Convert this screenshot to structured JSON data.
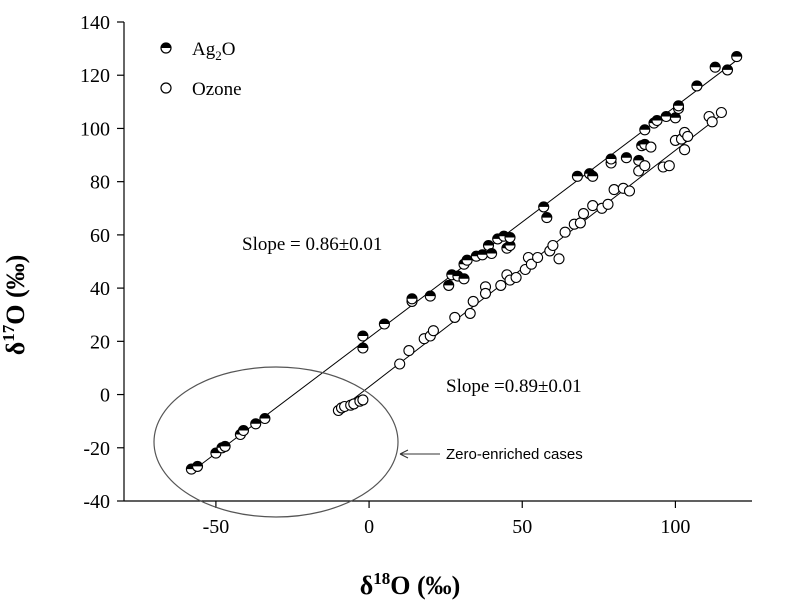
{
  "chart_data": {
    "type": "scatter",
    "title": "",
    "xlabel": {
      "prefix": "δ",
      "sup": "18",
      "suffix": "O (‰)"
    },
    "ylabel": {
      "prefix": "δ",
      "sup": "17",
      "suffix": "O (‰)"
    },
    "xlim": [
      -80,
      125
    ],
    "ylim": [
      -40,
      140
    ],
    "xticks": [
      -50,
      0,
      50,
      100
    ],
    "yticks": [
      -40,
      -20,
      0,
      20,
      40,
      60,
      80,
      100,
      120,
      140
    ],
    "grid": false,
    "legend": {
      "placement": "top-left",
      "entries": [
        {
          "base": "Ag",
          "sub": "2",
          "tail": "O",
          "marker": "half-filled"
        },
        {
          "base": "Ozone",
          "sub": "",
          "tail": "",
          "marker": "open"
        }
      ]
    },
    "series": [
      {
        "name": "Ag2O",
        "marker": "half-filled",
        "points": [
          [
            -58,
            -28
          ],
          [
            -56,
            -27
          ],
          [
            -50,
            -22
          ],
          [
            -48,
            -20
          ],
          [
            -47,
            -19.5
          ],
          [
            -42,
            -15
          ],
          [
            -41,
            -13.5
          ],
          [
            -37,
            -11
          ],
          [
            -34,
            -9
          ],
          [
            -2,
            17.5
          ],
          [
            -2,
            22
          ],
          [
            5,
            26.5
          ],
          [
            14,
            35
          ],
          [
            14,
            36
          ],
          [
            20,
            37
          ],
          [
            26,
            41
          ],
          [
            27,
            45
          ],
          [
            29,
            44.5
          ],
          [
            31,
            43.5
          ],
          [
            31,
            49
          ],
          [
            32,
            50.5
          ],
          [
            35,
            52
          ],
          [
            37,
            52.5
          ],
          [
            39,
            56
          ],
          [
            40,
            53
          ],
          [
            42,
            58.5
          ],
          [
            44,
            59.5
          ],
          [
            45,
            55
          ],
          [
            46,
            56
          ],
          [
            46,
            59
          ],
          [
            57,
            70.5
          ],
          [
            58,
            66.5
          ],
          [
            68,
            82
          ],
          [
            72,
            83
          ],
          [
            73,
            82
          ],
          [
            79,
            87
          ],
          [
            79,
            88.5
          ],
          [
            84,
            89
          ],
          [
            88,
            88
          ],
          [
            89,
            93.5
          ],
          [
            90,
            94
          ],
          [
            90,
            99.5
          ],
          [
            93,
            102
          ],
          [
            94,
            103
          ],
          [
            97,
            104.5
          ],
          [
            100,
            104
          ],
          [
            101,
            107.5
          ],
          [
            101,
            108.5
          ],
          [
            107,
            116
          ],
          [
            113,
            123
          ],
          [
            117,
            122
          ],
          [
            120,
            127
          ]
        ]
      },
      {
        "name": "Ozone",
        "marker": "open",
        "points": [
          [
            -10,
            -6
          ],
          [
            -9,
            -5
          ],
          [
            -8,
            -4.5
          ],
          [
            -6,
            -4
          ],
          [
            -5,
            -3.5
          ],
          [
            -3,
            -2.5
          ],
          [
            -2,
            -2
          ],
          [
            10,
            11.5
          ],
          [
            13,
            16.5
          ],
          [
            18,
            21
          ],
          [
            20,
            22
          ],
          [
            21,
            24
          ],
          [
            28,
            29
          ],
          [
            33,
            30.5
          ],
          [
            34,
            35
          ],
          [
            38,
            40.5
          ],
          [
            38,
            38
          ],
          [
            43,
            41
          ],
          [
            45,
            45
          ],
          [
            46,
            43
          ],
          [
            48,
            44
          ],
          [
            51,
            47
          ],
          [
            52,
            51.5
          ],
          [
            53,
            49
          ],
          [
            55,
            51.5
          ],
          [
            59,
            54
          ],
          [
            60,
            56
          ],
          [
            62,
            51
          ],
          [
            64,
            61
          ],
          [
            67,
            64
          ],
          [
            69,
            64.5
          ],
          [
            70,
            68
          ],
          [
            73,
            71
          ],
          [
            76,
            70
          ],
          [
            78,
            71.5
          ],
          [
            80,
            77
          ],
          [
            83,
            77.5
          ],
          [
            85,
            76.5
          ],
          [
            88,
            84
          ],
          [
            90,
            86
          ],
          [
            92,
            93
          ],
          [
            96,
            85.5
          ],
          [
            98,
            86
          ],
          [
            100,
            95.5
          ],
          [
            102,
            96
          ],
          [
            103,
            92
          ],
          [
            103,
            98.5
          ],
          [
            104,
            97
          ],
          [
            111,
            104.5
          ],
          [
            112,
            102.5
          ],
          [
            115,
            106
          ]
        ]
      }
    ],
    "fit_lines": [
      {
        "series": "Ag2O",
        "from": [
          -58,
          -29
        ],
        "to": [
          121,
          126.5
        ]
      },
      {
        "series": "Ozone",
        "from": [
          -10,
          -6
        ],
        "to": [
          116,
          106
        ]
      }
    ],
    "annotations": {
      "slope_ag2o": "Slope = 0.86±0.01",
      "slope_ozone": "Slope =0.89±0.01",
      "zero_enriched": "Zero-enriched cases"
    }
  }
}
